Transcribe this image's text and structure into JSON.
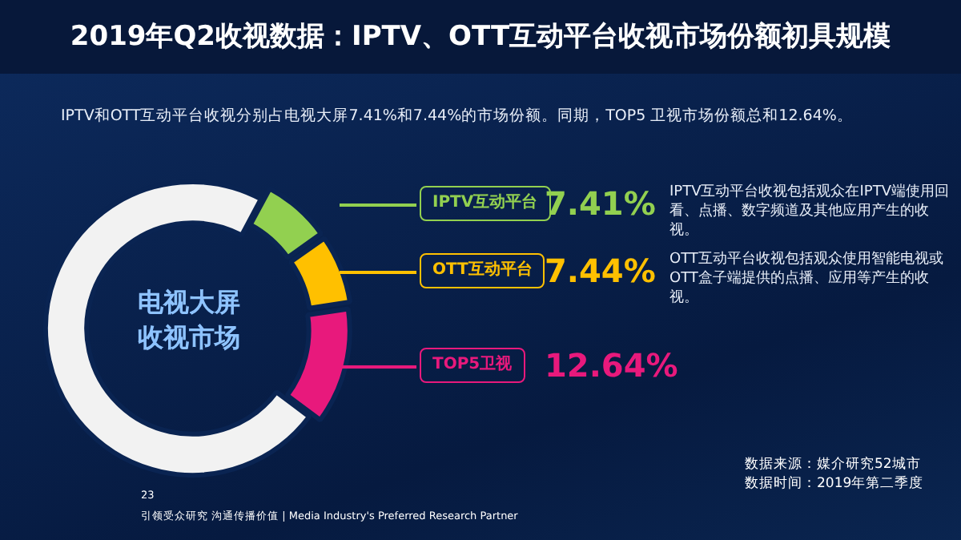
{
  "chart_data": {
    "type": "donut",
    "title": "2019年Q2收视数据：IPTV、OTT互动平台收视市场份额初具规模",
    "subtitle": "IPTV和OTT互动平台收视分别占电视大屏7.41%和7.44%的市场份额。同期，TOP5 卫视市场份额总和12.64%。",
    "categories": [
      "IPTV互动平台",
      "OTT互动平台",
      "TOP5卫视",
      null
    ],
    "values": [
      7.41,
      7.44,
      12.64,
      72.51
    ],
    "colors": [
      "#92d050",
      "#ffc000",
      "#e8197c",
      "#f2f2f2"
    ],
    "value_labels": [
      "7.41%",
      "7.44%",
      "12.64%",
      null
    ],
    "legend": "right",
    "annotations": [
      "电视大屏收视市场",
      "IPTV互动平台收视包括观众在IPTV端使用回看、点播、数字频道及其他应用产生的收视。",
      "OTT互动平台收视包括观众使用智能电视或OTT盒子端提供的点播、应用等产生的收视。",
      "数据来源：媒介研究52城市",
      "数据时间：2019年第二季度",
      "23",
      "引领受众研究 沟通传播价值 | Media Industry's Preferred Research Partner"
    ]
  }
}
